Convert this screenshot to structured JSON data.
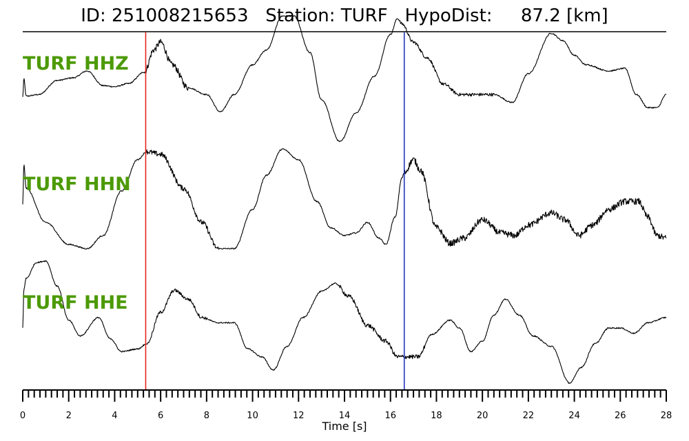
{
  "header": {
    "title": "ID: 251008215653   Station: TURF   HypoDist:     87.2 [km]"
  },
  "chart_data": {
    "type": "line",
    "xlabel": "Time [s]",
    "xlim": [
      0,
      28
    ],
    "x_ticks": [
      "0",
      "2",
      "4",
      "6",
      "8",
      "10",
      "12",
      "14",
      "16",
      "18",
      "20",
      "22",
      "24",
      "26",
      "28"
    ],
    "minor_tick_step": 0.25,
    "markers": [
      {
        "name": "P pick",
        "x": 5.35,
        "color": "#e8221e"
      },
      {
        "name": "S pick",
        "x": 16.6,
        "color": "#2233bb"
      }
    ],
    "label_color": "#4c9a06",
    "series": [
      {
        "name": "TURF HHZ",
        "noise": [
          [
            5.3,
            7.2,
            0.06
          ],
          [
            16.4,
            20.5,
            0.03
          ]
        ],
        "points": [
          [
            0,
            0.0
          ],
          [
            0.05,
            0.35
          ],
          [
            0.15,
            0.02
          ],
          [
            0.7,
            0.05
          ],
          [
            1.5,
            0.32
          ],
          [
            2.2,
            0.37
          ],
          [
            2.8,
            0.5
          ],
          [
            3.5,
            0.22
          ],
          [
            4.0,
            0.2
          ],
          [
            4.6,
            0.26
          ],
          [
            5.3,
            0.48
          ],
          [
            5.7,
            0.9
          ],
          [
            6.0,
            1.05
          ],
          [
            6.5,
            0.62
          ],
          [
            7.2,
            0.18
          ],
          [
            8.0,
            0.05
          ],
          [
            8.6,
            -0.28
          ],
          [
            9.2,
            0.05
          ],
          [
            10.0,
            0.62
          ],
          [
            10.6,
            0.9
          ],
          [
            11.3,
            1.55
          ],
          [
            11.8,
            1.55
          ],
          [
            12.5,
            0.85
          ],
          [
            13.0,
            -0.05
          ],
          [
            13.8,
            -0.85
          ],
          [
            14.5,
            -0.3
          ],
          [
            15.3,
            0.4
          ],
          [
            16.0,
            1.2
          ],
          [
            16.3,
            1.5
          ],
          [
            16.5,
            1.4
          ],
          [
            17.0,
            1.05
          ],
          [
            17.6,
            0.75
          ],
          [
            18.3,
            0.25
          ],
          [
            19.0,
            0.05
          ],
          [
            20.5,
            0.05
          ],
          [
            21.3,
            -0.1
          ],
          [
            22.0,
            0.45
          ],
          [
            23.0,
            1.22
          ],
          [
            23.5,
            1.08
          ],
          [
            24.0,
            0.8
          ],
          [
            24.5,
            0.62
          ],
          [
            25.5,
            0.5
          ],
          [
            26.2,
            0.55
          ],
          [
            26.7,
            0.05
          ],
          [
            27.2,
            -0.2
          ],
          [
            27.6,
            -0.2
          ],
          [
            28.0,
            0.05
          ]
        ]
      },
      {
        "name": "TURF HHN",
        "noise": [
          [
            5.4,
            8.5,
            0.05
          ],
          [
            16.6,
            28,
            0.06
          ]
        ],
        "points": [
          [
            0,
            0.05
          ],
          [
            0.05,
            0.8
          ],
          [
            0.15,
            0.35
          ],
          [
            1.0,
            -0.3
          ],
          [
            2.0,
            -0.72
          ],
          [
            2.8,
            -0.8
          ],
          [
            3.5,
            -0.55
          ],
          [
            4.3,
            0.3
          ],
          [
            5.0,
            0.9
          ],
          [
            5.4,
            1.05
          ],
          [
            6.0,
            1.0
          ],
          [
            7.0,
            0.35
          ],
          [
            7.8,
            -0.3
          ],
          [
            8.5,
            -0.8
          ],
          [
            9.2,
            -0.8
          ],
          [
            10.0,
            -0.05
          ],
          [
            10.6,
            0.6
          ],
          [
            11.3,
            1.1
          ],
          [
            12.0,
            0.9
          ],
          [
            12.8,
            0.1
          ],
          [
            13.4,
            -0.4
          ],
          [
            14.0,
            -0.55
          ],
          [
            14.5,
            -0.5
          ],
          [
            15.0,
            -0.3
          ],
          [
            15.5,
            -0.6
          ],
          [
            15.8,
            -0.72
          ],
          [
            16.2,
            -0.2
          ],
          [
            16.5,
            0.55
          ],
          [
            16.6,
            0.65
          ],
          [
            17.0,
            0.9
          ],
          [
            17.3,
            0.7
          ],
          [
            18.0,
            -0.4
          ],
          [
            18.6,
            -0.7
          ],
          [
            19.2,
            -0.6
          ],
          [
            20.0,
            -0.25
          ],
          [
            20.8,
            -0.5
          ],
          [
            21.4,
            -0.55
          ],
          [
            22.0,
            -0.35
          ],
          [
            23.0,
            -0.12
          ],
          [
            23.6,
            -0.25
          ],
          [
            24.2,
            -0.55
          ],
          [
            24.8,
            -0.35
          ],
          [
            25.5,
            -0.05
          ],
          [
            26.2,
            0.1
          ],
          [
            26.8,
            0.1
          ],
          [
            27.2,
            -0.2
          ],
          [
            27.6,
            -0.55
          ],
          [
            28.0,
            -0.6
          ]
        ]
      },
      {
        "name": "TURF HHE",
        "noise": [
          [
            5.6,
            8.0,
            0.03
          ],
          [
            13.8,
            17.5,
            0.04
          ]
        ],
        "points": [
          [
            0,
            0.0
          ],
          [
            0.05,
            0.75
          ],
          [
            0.15,
            0.95
          ],
          [
            0.6,
            1.25
          ],
          [
            1.0,
            1.28
          ],
          [
            1.5,
            0.8
          ],
          [
            2.0,
            0.15
          ],
          [
            2.5,
            -0.15
          ],
          [
            3.3,
            0.2
          ],
          [
            3.8,
            -0.2
          ],
          [
            4.3,
            -0.45
          ],
          [
            5.0,
            -0.4
          ],
          [
            5.4,
            -0.3
          ],
          [
            6.0,
            0.3
          ],
          [
            6.6,
            0.72
          ],
          [
            7.2,
            0.55
          ],
          [
            7.8,
            0.2
          ],
          [
            8.5,
            0.1
          ],
          [
            9.2,
            0.1
          ],
          [
            9.8,
            -0.4
          ],
          [
            10.4,
            -0.55
          ],
          [
            10.9,
            -0.8
          ],
          [
            11.5,
            -0.35
          ],
          [
            12.2,
            0.2
          ],
          [
            13.0,
            0.7
          ],
          [
            13.6,
            0.85
          ],
          [
            14.2,
            0.6
          ],
          [
            15.0,
            0.05
          ],
          [
            15.8,
            -0.25
          ],
          [
            16.3,
            -0.55
          ],
          [
            16.6,
            -0.55
          ],
          [
            17.2,
            -0.55
          ],
          [
            17.8,
            -0.12
          ],
          [
            18.6,
            0.15
          ],
          [
            19.0,
            0.0
          ],
          [
            19.5,
            -0.45
          ],
          [
            20.0,
            -0.25
          ],
          [
            20.5,
            0.25
          ],
          [
            21.0,
            0.55
          ],
          [
            21.6,
            0.25
          ],
          [
            22.2,
            -0.15
          ],
          [
            23.0,
            -0.35
          ],
          [
            23.8,
            -1.05
          ],
          [
            24.3,
            -0.75
          ],
          [
            24.9,
            -0.3
          ],
          [
            25.5,
            0.0
          ],
          [
            26.0,
            0.0
          ],
          [
            26.6,
            -0.1
          ],
          [
            27.2,
            0.1
          ],
          [
            28.0,
            0.2
          ]
        ]
      }
    ]
  }
}
